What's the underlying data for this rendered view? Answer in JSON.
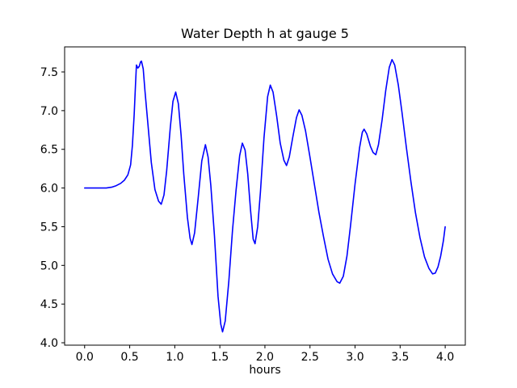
{
  "figure": {
    "background": "#ffffff",
    "plot_background": "#ffffff",
    "spine_color": "#000000",
    "tick_color": "#000000",
    "text_color": "#000000"
  },
  "chart_data": {
    "type": "line",
    "title": "Water Depth h at gauge 5",
    "xlabel": "hours",
    "ylabel": "",
    "grid": false,
    "legend": null,
    "xlim": [
      -0.222,
      4.223
    ],
    "ylim": [
      3.969,
      7.824
    ],
    "x_ticks": [
      0.0,
      0.5,
      1.0,
      1.5,
      2.0,
      2.5,
      3.0,
      3.5,
      4.0
    ],
    "x_tick_labels": [
      "0.0",
      "0.5",
      "1.0",
      "1.5",
      "2.0",
      "2.5",
      "3.0",
      "3.5",
      "4.0"
    ],
    "y_ticks": [
      4.0,
      4.5,
      5.0,
      5.5,
      6.0,
      6.5,
      7.0,
      7.5
    ],
    "y_tick_labels": [
      "4.0",
      "4.5",
      "5.0",
      "5.5",
      "6.0",
      "6.5",
      "7.0",
      "7.5"
    ],
    "series": [
      {
        "name": "h",
        "color": "#0000ff",
        "line_width": 1.6,
        "points": [
          [
            0.0,
            6.0
          ],
          [
            0.06,
            6.0
          ],
          [
            0.12,
            6.0
          ],
          [
            0.18,
            6.0
          ],
          [
            0.24,
            6.0
          ],
          [
            0.3,
            6.01
          ],
          [
            0.35,
            6.03
          ],
          [
            0.4,
            6.06
          ],
          [
            0.44,
            6.1
          ],
          [
            0.48,
            6.17
          ],
          [
            0.51,
            6.3
          ],
          [
            0.53,
            6.55
          ],
          [
            0.55,
            6.95
          ],
          [
            0.565,
            7.35
          ],
          [
            0.575,
            7.59
          ],
          [
            0.59,
            7.55
          ],
          [
            0.605,
            7.57
          ],
          [
            0.62,
            7.63
          ],
          [
            0.63,
            7.64
          ],
          [
            0.65,
            7.54
          ],
          [
            0.67,
            7.25
          ],
          [
            0.7,
            6.85
          ],
          [
            0.74,
            6.33
          ],
          [
            0.78,
            5.98
          ],
          [
            0.82,
            5.83
          ],
          [
            0.85,
            5.79
          ],
          [
            0.88,
            5.91
          ],
          [
            0.91,
            6.22
          ],
          [
            0.95,
            6.78
          ],
          [
            0.98,
            7.12
          ],
          [
            1.01,
            7.24
          ],
          [
            1.04,
            7.09
          ],
          [
            1.07,
            6.68
          ],
          [
            1.1,
            6.18
          ],
          [
            1.14,
            5.62
          ],
          [
            1.17,
            5.35
          ],
          [
            1.19,
            5.27
          ],
          [
            1.22,
            5.42
          ],
          [
            1.26,
            5.88
          ],
          [
            1.3,
            6.35
          ],
          [
            1.34,
            6.56
          ],
          [
            1.37,
            6.4
          ],
          [
            1.4,
            6.03
          ],
          [
            1.44,
            5.38
          ],
          [
            1.48,
            4.6
          ],
          [
            1.51,
            4.24
          ],
          [
            1.53,
            4.14
          ],
          [
            1.56,
            4.28
          ],
          [
            1.6,
            4.8
          ],
          [
            1.64,
            5.45
          ],
          [
            1.68,
            5.97
          ],
          [
            1.72,
            6.42
          ],
          [
            1.75,
            6.58
          ],
          [
            1.78,
            6.49
          ],
          [
            1.81,
            6.18
          ],
          [
            1.84,
            5.72
          ],
          [
            1.87,
            5.34
          ],
          [
            1.89,
            5.28
          ],
          [
            1.92,
            5.5
          ],
          [
            1.95,
            5.95
          ],
          [
            1.99,
            6.65
          ],
          [
            2.03,
            7.18
          ],
          [
            2.06,
            7.33
          ],
          [
            2.09,
            7.24
          ],
          [
            2.13,
            6.93
          ],
          [
            2.17,
            6.58
          ],
          [
            2.21,
            6.36
          ],
          [
            2.24,
            6.29
          ],
          [
            2.27,
            6.4
          ],
          [
            2.31,
            6.66
          ],
          [
            2.35,
            6.91
          ],
          [
            2.38,
            7.01
          ],
          [
            2.41,
            6.94
          ],
          [
            2.45,
            6.74
          ],
          [
            2.5,
            6.4
          ],
          [
            2.55,
            6.04
          ],
          [
            2.6,
            5.68
          ],
          [
            2.65,
            5.37
          ],
          [
            2.7,
            5.08
          ],
          [
            2.75,
            4.89
          ],
          [
            2.8,
            4.79
          ],
          [
            2.83,
            4.77
          ],
          [
            2.87,
            4.86
          ],
          [
            2.91,
            5.12
          ],
          [
            2.95,
            5.52
          ],
          [
            3.0,
            6.05
          ],
          [
            3.05,
            6.52
          ],
          [
            3.08,
            6.72
          ],
          [
            3.1,
            6.76
          ],
          [
            3.13,
            6.7
          ],
          [
            3.17,
            6.54
          ],
          [
            3.2,
            6.46
          ],
          [
            3.23,
            6.43
          ],
          [
            3.26,
            6.56
          ],
          [
            3.3,
            6.88
          ],
          [
            3.34,
            7.26
          ],
          [
            3.38,
            7.56
          ],
          [
            3.41,
            7.66
          ],
          [
            3.44,
            7.59
          ],
          [
            3.48,
            7.33
          ],
          [
            3.52,
            6.98
          ],
          [
            3.57,
            6.52
          ],
          [
            3.62,
            6.08
          ],
          [
            3.67,
            5.68
          ],
          [
            3.72,
            5.36
          ],
          [
            3.77,
            5.11
          ],
          [
            3.82,
            4.96
          ],
          [
            3.86,
            4.89
          ],
          [
            3.89,
            4.9
          ],
          [
            3.92,
            4.98
          ],
          [
            3.95,
            5.12
          ],
          [
            3.98,
            5.32
          ],
          [
            4.0,
            5.5
          ]
        ]
      }
    ]
  }
}
